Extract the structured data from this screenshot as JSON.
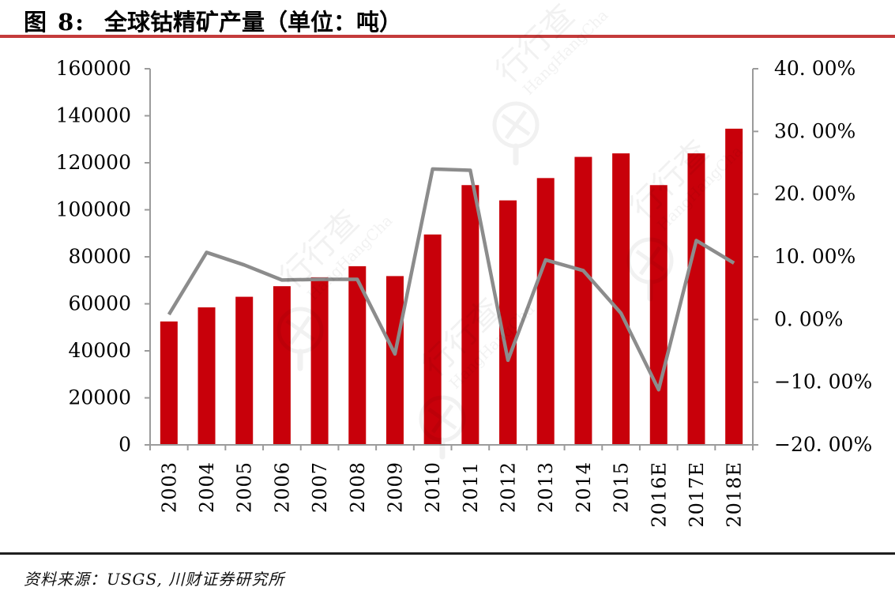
{
  "header": {
    "figure_label": "图 8:",
    "title": "全球钴精矿产量（单位：吨）",
    "underline_color": "#C43B3B"
  },
  "footer": {
    "source": "资料来源：USGS, 川财证券研究所"
  },
  "watermark": {
    "cn": "行行查",
    "en": "HangHangCha"
  },
  "chart_data": {
    "type": "bar",
    "title": "全球钴精矿产量（单位：吨）",
    "categories": [
      "2003",
      "2004",
      "2005",
      "2006",
      "2007",
      "2008",
      "2009",
      "2010",
      "2011",
      "2012",
      "2013",
      "2014",
      "2015",
      "2016E",
      "2017E",
      "2018E"
    ],
    "series": [
      {
        "id": "production_tons",
        "type": "bar",
        "axis": "left",
        "color": "#C8000A",
        "values": [
          52500,
          58500,
          63000,
          67500,
          71300,
          76000,
          71800,
          89500,
          110500,
          104000,
          113500,
          122500,
          124000,
          110500,
          124000,
          134500
        ]
      },
      {
        "id": "yoy_growth_pct",
        "type": "line",
        "axis": "right",
        "color": "#8C8C8C",
        "values": [
          0.8,
          10.7,
          8.7,
          6.3,
          6.4,
          6.4,
          -5.5,
          24.0,
          23.8,
          -6.5,
          9.5,
          7.8,
          1.0,
          -11.2,
          12.6,
          9.0
        ]
      }
    ],
    "left_axis": {
      "min": 0,
      "max": 160000,
      "step": 20000,
      "tick_labels": [
        "160000",
        "140000",
        "120000",
        "100000",
        "80000",
        "60000",
        "40000",
        "20000",
        "0"
      ]
    },
    "right_axis": {
      "min": -20,
      "max": 40,
      "step": 10,
      "tick_labels": [
        "40. 00%",
        "30. 00%",
        "20. 00%",
        "10. 00%",
        "0. 00%",
        "−10. 00%",
        "−20. 00%"
      ]
    },
    "grid": false,
    "legend": "none",
    "axis_color": "#9B9B9B",
    "tick_label_color": "#000000"
  }
}
